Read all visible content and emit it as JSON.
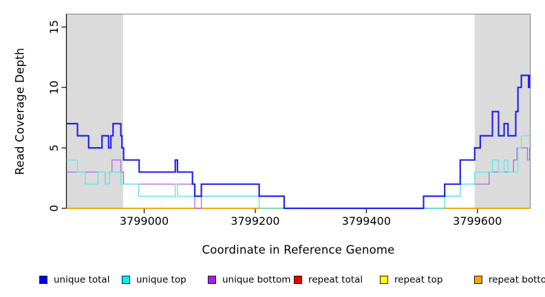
{
  "chart_data": {
    "type": "line",
    "subtype": "step",
    "title": "",
    "xlabel": "Coordinate in Reference Genome",
    "ylabel": "Read Coverage Depth",
    "xlim": [
      3798860,
      3799695
    ],
    "ylim": [
      0,
      16.07
    ],
    "x_ticks": [
      3799000,
      3799200,
      3799400,
      3799600
    ],
    "y_ticks": [
      0,
      5,
      10,
      15
    ],
    "grid": false,
    "legend_position": "bottom",
    "background_color": "#ffffff",
    "highlight_regions": {
      "color": "#dbdbdb",
      "ranges": [
        [
          3798860,
          3798962
        ],
        [
          3799595,
          3799695
        ]
      ]
    },
    "series": [
      {
        "name": "unique total",
        "legend_color": "#0000f0",
        "line_color": "#2222ee",
        "line_width": 2.2,
        "z": 6,
        "steps": [
          [
            3798860,
            7
          ],
          [
            3798880,
            6
          ],
          [
            3798900,
            5
          ],
          [
            3798924,
            6
          ],
          [
            3798936,
            5
          ],
          [
            3798940,
            6
          ],
          [
            3798944,
            7
          ],
          [
            3798958,
            6
          ],
          [
            3798960,
            5
          ],
          [
            3798963,
            4
          ],
          [
            3798991,
            3
          ],
          [
            3799056,
            4
          ],
          [
            3799060,
            3
          ],
          [
            3799087,
            2
          ],
          [
            3799091,
            1
          ],
          [
            3799103,
            2
          ],
          [
            3799207,
            1
          ],
          [
            3799252,
            0
          ],
          [
            3799503,
            1
          ],
          [
            3799541,
            2
          ],
          [
            3799569,
            4
          ],
          [
            3799595,
            5
          ],
          [
            3799605,
            6
          ],
          [
            3799627,
            8
          ],
          [
            3799638,
            6
          ],
          [
            3799648,
            7
          ],
          [
            3799655,
            6
          ],
          [
            3799669,
            8
          ],
          [
            3799673,
            10
          ],
          [
            3799679,
            11
          ],
          [
            3799692,
            10
          ],
          [
            3799694,
            11
          ]
        ]
      },
      {
        "name": "unique top",
        "legend_color": "#00efef",
        "line_color": "#63e6e6",
        "line_width": 1.4,
        "z": 5,
        "steps": [
          [
            3798860,
            4
          ],
          [
            3798880,
            3
          ],
          [
            3798894,
            2
          ],
          [
            3798917,
            3
          ],
          [
            3798930,
            2
          ],
          [
            3798937,
            3
          ],
          [
            3798958,
            2
          ],
          [
            3798990,
            1
          ],
          [
            3799056,
            2
          ],
          [
            3799060,
            1
          ],
          [
            3799207,
            0
          ],
          [
            3799541,
            1
          ],
          [
            3799569,
            2
          ],
          [
            3799595,
            3
          ],
          [
            3799627,
            4
          ],
          [
            3799638,
            3
          ],
          [
            3799648,
            4
          ],
          [
            3799655,
            3
          ],
          [
            3799673,
            5
          ],
          [
            3799679,
            6
          ]
        ]
      },
      {
        "name": "unique bottom",
        "legend_color": "#a020f0",
        "line_color": "#b06fe0",
        "line_width": 1.4,
        "z": 4,
        "steps": [
          [
            3798860,
            3
          ],
          [
            3798930,
            2
          ],
          [
            3798937,
            3
          ],
          [
            3798942,
            4
          ],
          [
            3798958,
            3
          ],
          [
            3798963,
            2
          ],
          [
            3799091,
            0
          ],
          [
            3799103,
            1
          ],
          [
            3799252,
            0
          ],
          [
            3799541,
            1
          ],
          [
            3799569,
            2
          ],
          [
            3799621,
            3
          ],
          [
            3799665,
            4
          ],
          [
            3799671,
            5
          ],
          [
            3799690,
            4
          ],
          [
            3799694,
            5
          ]
        ]
      },
      {
        "name": "repeat total",
        "legend_color": "#e80000",
        "line_color": "#e80000",
        "line_width": 1.2,
        "z": 1,
        "steps": [
          [
            3798860,
            0
          ]
        ]
      },
      {
        "name": "repeat top",
        "legend_color": "#ffff00",
        "line_color": "#ffff00",
        "line_width": 1.2,
        "z": 2,
        "steps": [
          [
            3798860,
            0
          ]
        ]
      },
      {
        "name": "repeat bottom",
        "legend_color": "#ffa500",
        "line_color": "#ffa500",
        "line_width": 1.6,
        "z": 3,
        "steps": [
          [
            3798860,
            0
          ]
        ]
      }
    ],
    "axis": {
      "box_color": "#808080",
      "axis_color": "#000000",
      "tick_length": 7,
      "tick_label_size": 16
    }
  }
}
